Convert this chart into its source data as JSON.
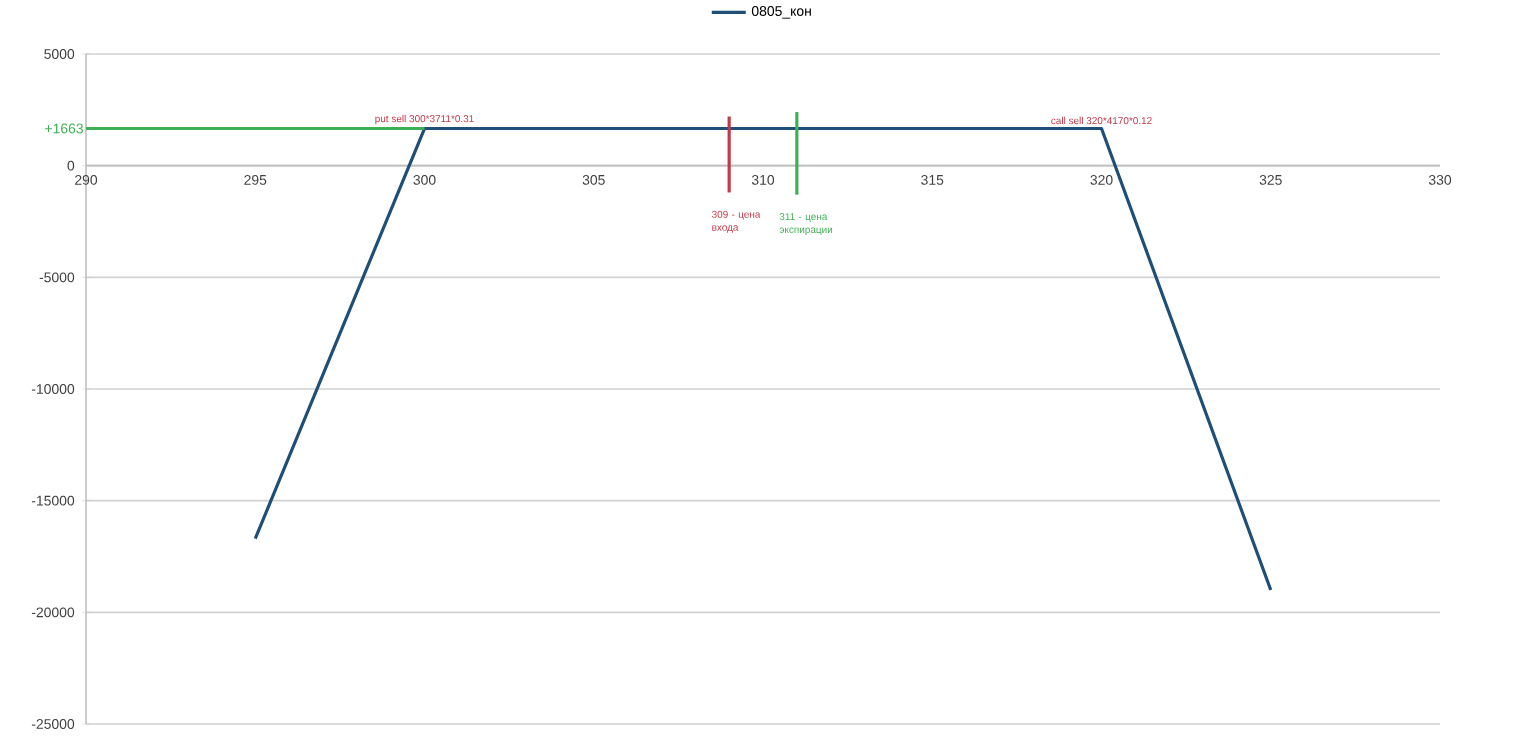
{
  "chart_data": {
    "type": "line",
    "xlim": [
      290,
      330
    ],
    "ylim": [
      -25000,
      5000
    ],
    "xticks": [
      290,
      295,
      300,
      305,
      310,
      315,
      320,
      325,
      330
    ],
    "yticks": [
      -25000,
      -20000,
      -15000,
      -10000,
      -5000,
      0,
      5000
    ],
    "grid": "y",
    "legend": "top",
    "marker": "none",
    "line_style": "solid",
    "series": [
      {
        "name": "0805_кон",
        "color": "#1f4e79",
        "x": [
          295,
          300,
          320,
          325
        ],
        "values": [
          -16700,
          1663,
          1663,
          -19000
        ]
      },
      {
        "color": "#3cb054",
        "x": [
          290,
          300
        ],
        "values": [
          1663,
          1663
        ]
      },
      {
        "color": "#c0394a",
        "x": [
          309,
          309
        ],
        "values": [
          2200,
          -1200
        ]
      },
      {
        "color": "#3cb054",
        "x": [
          311,
          311
        ],
        "values": [
          2400,
          -1300
        ]
      }
    ],
    "annotations": [
      {
        "text": "+1663",
        "x": 290,
        "y": 1663
      },
      {
        "text": "put sell 300*3711*0.31",
        "x": 300,
        "y": 1663
      },
      {
        "text": "call sell 320*4170*0.12",
        "x": 320,
        "y": 1663
      },
      {
        "text": "309 - цена входа",
        "x": 309,
        "y": -1200
      },
      {
        "text": "311 - цена экспирации",
        "x": 311,
        "y": -1300
      }
    ]
  }
}
